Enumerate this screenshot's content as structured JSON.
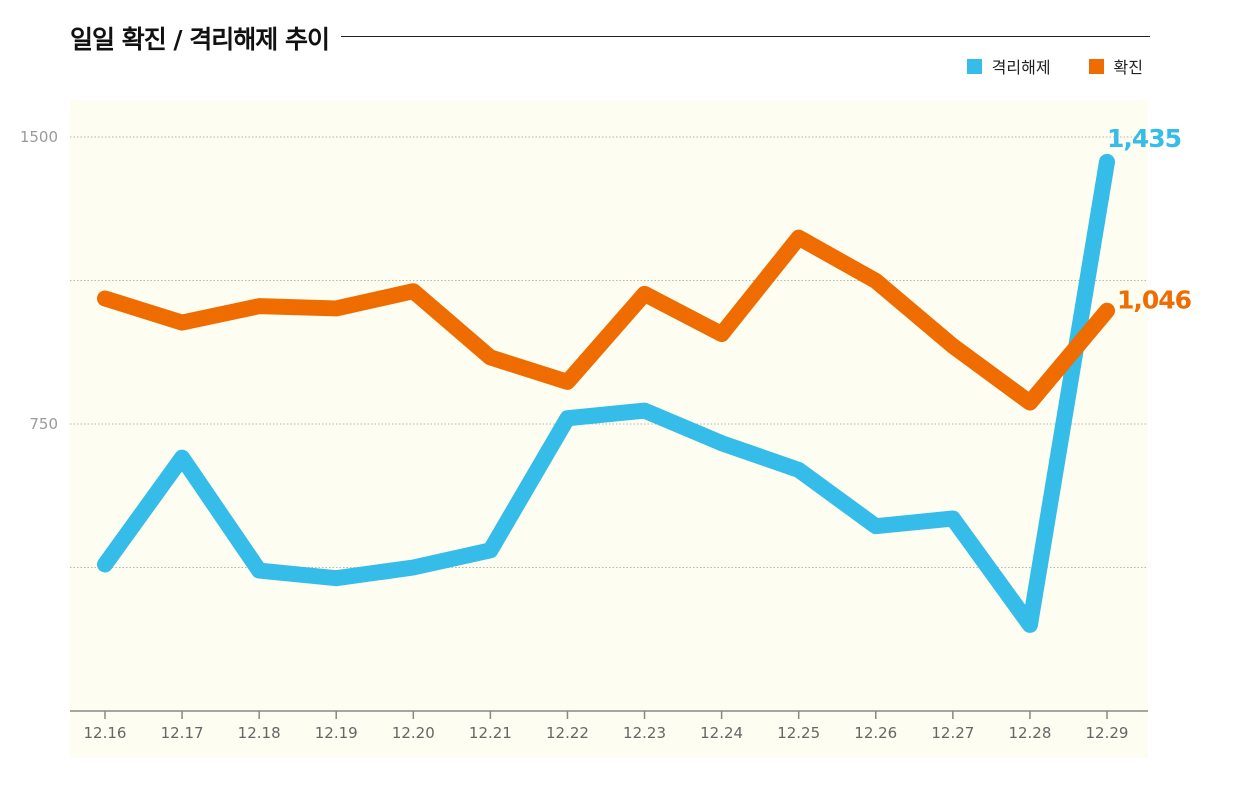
{
  "header": {
    "title": "일일 확진 / 격리해제 추이"
  },
  "colors": {
    "released": "#35bce9",
    "confirmed": "#ee6c00",
    "plot_bg": "#fdfdf1"
  },
  "chart_data": {
    "type": "line",
    "title": "일일 확진 / 격리해제 추이",
    "xlabel": "",
    "ylabel": "",
    "categories": [
      "12.16",
      "12.17",
      "12.18",
      "12.19",
      "12.20",
      "12.21",
      "12.22",
      "12.23",
      "12.24",
      "12.25",
      "12.26",
      "12.27",
      "12.28",
      "12.29"
    ],
    "y_ticks": [
      {
        "value": 1500,
        "label": "1500"
      },
      {
        "value": 1125,
        "label": ""
      },
      {
        "value": 750,
        "label": "750"
      },
      {
        "value": 375,
        "label": ""
      }
    ],
    "ylim": [
      0,
      1500
    ],
    "grid": true,
    "legend": "top-right",
    "series": [
      {
        "name": "격리해제",
        "color": "#35bce9",
        "values": [
          383,
          662,
          367,
          347,
          375,
          420,
          765,
          785,
          700,
          630,
          483,
          503,
          225,
          1435
        ],
        "end_label": "1,435"
      },
      {
        "name": "확진",
        "color": "#ee6c00",
        "values": [
          1078,
          1015,
          1058,
          1052,
          1097,
          924,
          860,
          1090,
          985,
          1237,
          1124,
          954,
          806,
          1046
        ],
        "end_label": "1,046"
      }
    ]
  }
}
